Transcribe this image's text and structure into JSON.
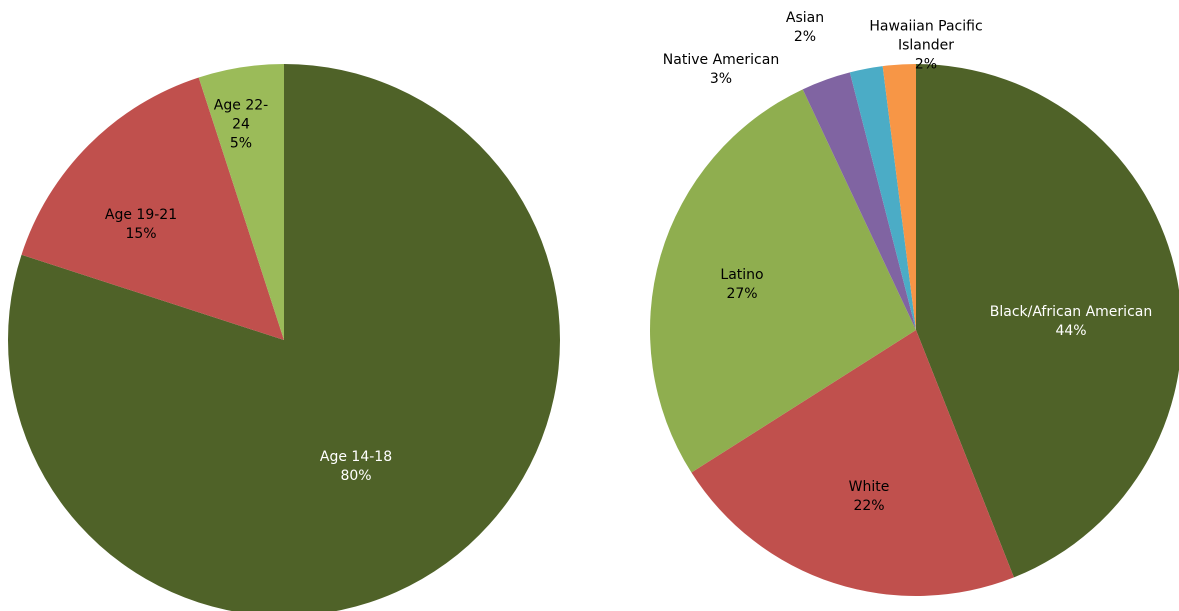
{
  "chart_data": [
    {
      "type": "pie",
      "categories": [
        "Age 14-18",
        "Age 19-21",
        "Age 22-24"
      ],
      "values": [
        80,
        15,
        5
      ],
      "value_labels": [
        "80%",
        "15%",
        "5%"
      ],
      "colors": [
        "#4f6228",
        "#c0504d",
        "#9bbb59"
      ]
    },
    {
      "type": "pie",
      "categories": [
        "Black/African American",
        "White",
        "Latino",
        "Native American",
        "Asian",
        "Hawaiian Pacific Islander"
      ],
      "values": [
        44,
        22,
        27,
        3,
        2,
        2
      ],
      "value_labels": [
        "44%",
        "22%",
        "27%",
        "3%",
        "2%",
        "2%"
      ],
      "colors": [
        "#4f6228",
        "#c0504d",
        "#8fae4f",
        "#8064a2",
        "#4bacc6",
        "#f79646"
      ]
    }
  ]
}
